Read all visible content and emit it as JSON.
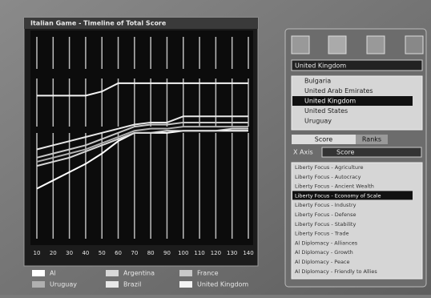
{
  "window_title": "Italian Game - Timeline of Total Score",
  "chart_data": {
    "type": "line",
    "categories": [
      "10",
      "20",
      "30",
      "40",
      "50",
      "60",
      "70",
      "80",
      "90",
      "100",
      "110",
      "120",
      "130",
      "140"
    ],
    "ylim": [
      0,
      100
    ],
    "series": [
      {
        "name": "Al",
        "color": "#ffffff",
        "values": [
          25,
          29,
          33,
          37,
          42,
          48,
          52,
          52,
          52,
          53,
          53,
          53,
          53,
          53
        ]
      },
      {
        "name": "Argentina",
        "color": "#d8d8d8",
        "values": [
          36,
          38,
          40,
          43,
          46,
          49,
          52,
          52,
          53,
          53,
          53,
          53,
          54,
          54
        ]
      },
      {
        "name": "France",
        "color": "#c8c8c8",
        "values": [
          40,
          42,
          44,
          46,
          49,
          52,
          55,
          56,
          56,
          57,
          57,
          57,
          57,
          57
        ]
      },
      {
        "name": "Uruguay",
        "color": "#b0b0b0",
        "values": [
          38,
          40,
          42,
          44,
          47,
          50,
          53,
          54,
          54,
          55,
          55,
          55,
          55,
          55
        ]
      },
      {
        "name": "Brazil",
        "color": "#e8e8e8",
        "values": [
          44,
          46,
          48,
          50,
          52,
          54,
          56,
          57,
          57,
          60,
          60,
          60,
          60,
          60
        ]
      },
      {
        "name": "United Kingdom",
        "color": "#f4f4f4",
        "values": [
          70,
          70,
          70,
          70,
          72,
          76,
          76,
          76,
          76,
          76,
          76,
          76,
          76,
          76
        ]
      }
    ]
  },
  "sidebar": {
    "search": "United Kingdom",
    "civ_list": [
      "Bulgaria",
      "United Arab Emirates",
      "United Kingdom",
      "United States",
      "Uruguay"
    ],
    "selected_civ": 2,
    "tabs": [
      "Score",
      "Ranks"
    ],
    "axis_label": "X Axis",
    "axis_value": "Score",
    "event_list": [
      "Liberty Focus - Agriculture",
      "Liberty Focus - Autocracy",
      "Liberty Focus - Ancient Wealth",
      "Liberty Focus - Economy of Scale",
      "Liberty Focus - Industry",
      "Liberty Focus - Defense",
      "Liberty Focus - Stability",
      "Liberty Focus - Trade",
      "Al Diplomacy - Alliances",
      "Al Diplomacy - Growth",
      "Al Diplomacy - Peace",
      "Al Diplomacy - Friendly to Allies"
    ],
    "selected_event": 3
  }
}
